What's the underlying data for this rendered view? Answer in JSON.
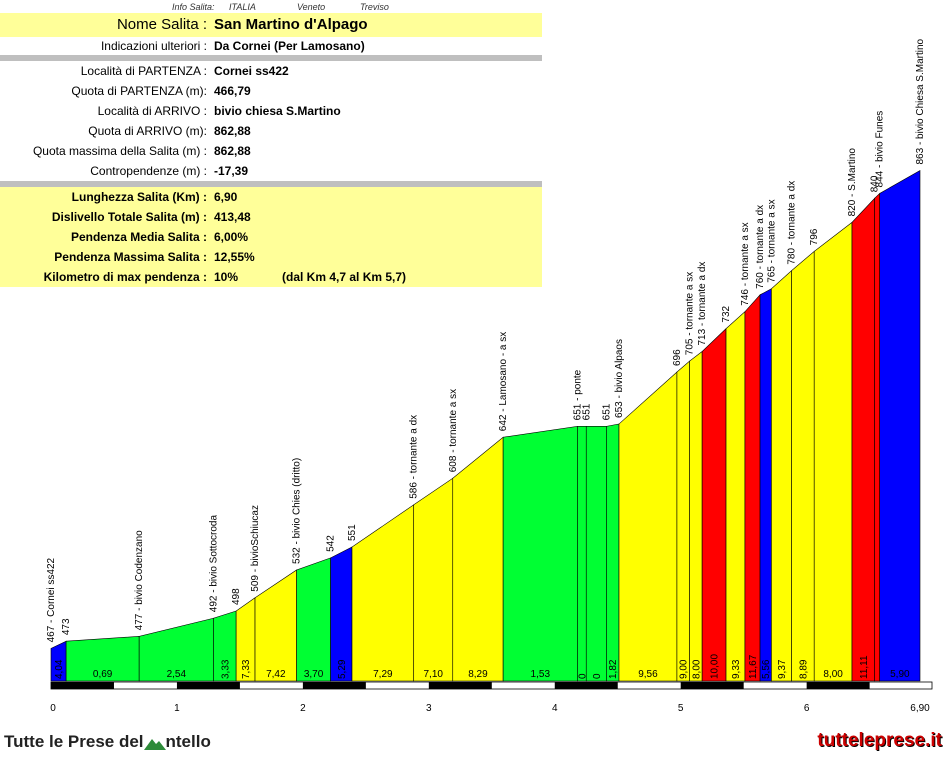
{
  "info": {
    "caption": "Info Salita:",
    "country": "ITALIA",
    "region": "Veneto",
    "province": "Treviso"
  },
  "panel": {
    "name_label": "Nome Salita :",
    "name_value": "San Martino d'Alpago",
    "notes_label": "Indicazioni ulteriori :",
    "notes_value": "Da Cornei (Per Lamosano)",
    "start_label": "Località di PARTENZA :",
    "start_value": "Cornei ss422",
    "start_alt_label": "Quota di PARTENZA (m):",
    "start_alt_value": "466,79",
    "end_label": "Località di ARRIVO :",
    "end_value": "bivio chiesa S.Martino",
    "end_alt_label": "Quota di ARRIVO (m):",
    "end_alt_value": "862,88",
    "max_alt_label": "Quota massima della Salita (m) :",
    "max_alt_value": "862,88",
    "counter_label": "Contropendenze (m) :",
    "counter_value": "-17,39",
    "length_label": "Lunghezza Salita (Km) :",
    "length_value": "6,90",
    "drop_label": "Dislivello Totale Salita (m) :",
    "drop_value": "413,48",
    "avg_label": "Pendenza Media Salita :",
    "avg_value": "6,00%",
    "maxgrad_label": "Pendenza Massima Salita :",
    "maxgrad_value": "12,55%",
    "maxkm_label": "Kilometro di max pendenza :",
    "maxkm_value": "10%",
    "maxkm_range": "(dal Km 4,7 al Km 5,7)"
  },
  "footer": {
    "brand_left": "Tutte le Prese del",
    "brand_left_tail": "ntello",
    "brand_right": "tutteleprese.it"
  },
  "chart_data": {
    "type": "area",
    "title": "",
    "xlabel": "",
    "ylabel": "",
    "xlim": [
      0,
      6.9
    ],
    "ylim": [
      440,
      880
    ],
    "x_ticks": [
      "0",
      "1",
      "2",
      "3",
      "4",
      "5",
      "6",
      "6,90"
    ],
    "x_tick_values": [
      0,
      1,
      2,
      3,
      4,
      5,
      6,
      6.9
    ],
    "colors": {
      "green": "#00ff33",
      "yellow": "#ffff00",
      "red": "#ff0000",
      "blue": "#0000ff"
    },
    "segments": [
      {
        "x0": 0.0,
        "x1": 0.12,
        "alt0": 467,
        "alt1": 473,
        "grade": "4,04",
        "color": "blue"
      },
      {
        "x0": 0.12,
        "x1": 0.7,
        "alt0": 473,
        "alt1": 477,
        "grade": "0,69",
        "color": "green"
      },
      {
        "x0": 0.7,
        "x1": 1.29,
        "alt0": 477,
        "alt1": 492,
        "grade": "2,54",
        "color": "green"
      },
      {
        "x0": 1.29,
        "x1": 1.47,
        "alt0": 492,
        "alt1": 498,
        "grade": "3,33",
        "color": "green"
      },
      {
        "x0": 1.47,
        "x1": 1.62,
        "alt0": 498,
        "alt1": 509,
        "grade": "7,33",
        "color": "yellow"
      },
      {
        "x0": 1.62,
        "x1": 1.95,
        "alt0": 509,
        "alt1": 532,
        "grade": "7,42",
        "color": "yellow"
      },
      {
        "x0": 1.95,
        "x1": 2.22,
        "alt0": 532,
        "alt1": 542,
        "grade": "3,70",
        "color": "green"
      },
      {
        "x0": 2.22,
        "x1": 2.39,
        "alt0": 542,
        "alt1": 551,
        "grade": "5,29",
        "color": "blue"
      },
      {
        "x0": 2.39,
        "x1": 2.88,
        "alt0": 551,
        "alt1": 586,
        "grade": "7,29",
        "color": "yellow"
      },
      {
        "x0": 2.88,
        "x1": 3.19,
        "alt0": 586,
        "alt1": 608,
        "grade": "7,10",
        "color": "yellow"
      },
      {
        "x0": 3.19,
        "x1": 3.59,
        "alt0": 608,
        "alt1": 642,
        "grade": "8,29",
        "color": "yellow"
      },
      {
        "x0": 3.59,
        "x1": 4.18,
        "alt0": 642,
        "alt1": 651,
        "grade": "1,53",
        "color": "green"
      },
      {
        "x0": 4.18,
        "x1": 4.25,
        "alt0": 651,
        "alt1": 651,
        "grade": "0",
        "color": "green"
      },
      {
        "x0": 4.25,
        "x1": 4.41,
        "alt0": 651,
        "alt1": 651,
        "grade": "0",
        "color": "green"
      },
      {
        "x0": 4.41,
        "x1": 4.51,
        "alt0": 651,
        "alt1": 653,
        "grade": "1,82",
        "color": "green"
      },
      {
        "x0": 4.51,
        "x1": 4.97,
        "alt0": 653,
        "alt1": 696,
        "grade": "9,56",
        "color": "yellow"
      },
      {
        "x0": 4.97,
        "x1": 5.07,
        "alt0": 696,
        "alt1": 705,
        "grade": "9,00",
        "color": "yellow"
      },
      {
        "x0": 5.07,
        "x1": 5.17,
        "alt0": 705,
        "alt1": 713,
        "grade": "8,00",
        "color": "yellow"
      },
      {
        "x0": 5.17,
        "x1": 5.36,
        "alt0": 713,
        "alt1": 732,
        "grade": "10,00",
        "color": "red"
      },
      {
        "x0": 5.36,
        "x1": 5.51,
        "alt0": 732,
        "alt1": 746,
        "grade": "9,33",
        "color": "yellow"
      },
      {
        "x0": 5.51,
        "x1": 5.63,
        "alt0": 746,
        "alt1": 760,
        "grade": "11,67",
        "color": "red"
      },
      {
        "x0": 5.63,
        "x1": 5.72,
        "alt0": 760,
        "alt1": 765,
        "grade": "5,56",
        "color": "blue"
      },
      {
        "x0": 5.72,
        "x1": 5.88,
        "alt0": 765,
        "alt1": 780,
        "grade": "9,37",
        "color": "yellow"
      },
      {
        "x0": 5.88,
        "x1": 6.06,
        "alt0": 780,
        "alt1": 796,
        "grade": "8,89",
        "color": "yellow"
      },
      {
        "x0": 6.06,
        "x1": 6.36,
        "alt0": 796,
        "alt1": 820,
        "grade": "8,00",
        "color": "yellow"
      },
      {
        "x0": 6.36,
        "x1": 6.54,
        "alt0": 820,
        "alt1": 840,
        "grade": "11,11",
        "color": "red"
      },
      {
        "x0": 6.54,
        "x1": 6.58,
        "alt0": 840,
        "alt1": 844,
        "grade": "",
        "color": "red"
      },
      {
        "x0": 6.58,
        "x1": 6.9,
        "alt0": 844,
        "alt1": 863,
        "grade": "5,90",
        "color": "blue"
      }
    ],
    "annotations": [
      {
        "x": 0.0,
        "alt": 467,
        "text": "467 - Cornei ss422"
      },
      {
        "x": 0.12,
        "alt": 473,
        "text": "473"
      },
      {
        "x": 0.7,
        "alt": 477,
        "text": "477 - bivio Codenzano"
      },
      {
        "x": 1.29,
        "alt": 492,
        "text": "492 - bivio Sottocroda"
      },
      {
        "x": 1.47,
        "alt": 498,
        "text": "498"
      },
      {
        "x": 1.62,
        "alt": 509,
        "text": "509 - bivioSchiucaz"
      },
      {
        "x": 1.95,
        "alt": 532,
        "text": "532 - bivio Chies (dritto)"
      },
      {
        "x": 2.22,
        "alt": 542,
        "text": "542"
      },
      {
        "x": 2.39,
        "alt": 551,
        "text": "551"
      },
      {
        "x": 2.88,
        "alt": 586,
        "text": "586 - tornante a dx"
      },
      {
        "x": 3.19,
        "alt": 608,
        "text": "608 - tornante a sx"
      },
      {
        "x": 3.59,
        "alt": 642,
        "text": "642 - Lamosano - a sx"
      },
      {
        "x": 4.18,
        "alt": 651,
        "text": "651 - ponte"
      },
      {
        "x": 4.25,
        "alt": 651,
        "text": "651"
      },
      {
        "x": 4.41,
        "alt": 651,
        "text": "651"
      },
      {
        "x": 4.51,
        "alt": 653,
        "text": "653 - bivio Alpaos"
      },
      {
        "x": 4.97,
        "alt": 696,
        "text": "696"
      },
      {
        "x": 5.07,
        "alt": 705,
        "text": "705 - tornante a sx"
      },
      {
        "x": 5.17,
        "alt": 713,
        "text": "713 - tornante a dx"
      },
      {
        "x": 5.36,
        "alt": 732,
        "text": "732"
      },
      {
        "x": 5.51,
        "alt": 746,
        "text": "746 - tornante a sx"
      },
      {
        "x": 5.63,
        "alt": 760,
        "text": "760 - tornante a dx"
      },
      {
        "x": 5.72,
        "alt": 765,
        "text": "765 - tornante a sx"
      },
      {
        "x": 5.88,
        "alt": 780,
        "text": "780 - tornante a dx"
      },
      {
        "x": 6.06,
        "alt": 796,
        "text": "796"
      },
      {
        "x": 6.36,
        "alt": 820,
        "text": "820 - S.Martino"
      },
      {
        "x": 6.54,
        "alt": 840,
        "text": "840"
      },
      {
        "x": 6.58,
        "alt": 844,
        "text": "844 - bivio Funes"
      },
      {
        "x": 6.9,
        "alt": 863,
        "text": "863 - bivio Chiesa S.Martino"
      }
    ]
  }
}
